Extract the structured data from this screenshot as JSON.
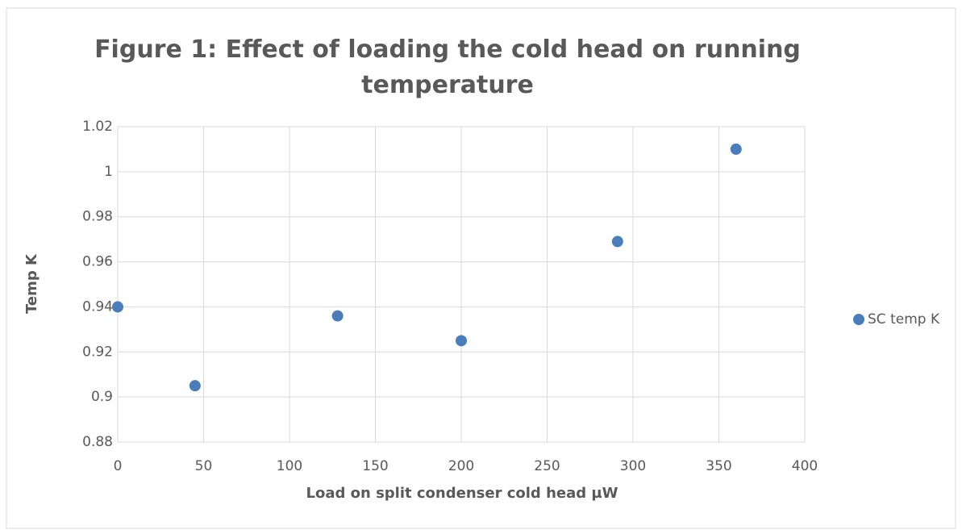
{
  "chart_data": {
    "type": "scatter",
    "title": "Figure 1: Effect of loading the cold head on running temperature",
    "xlabel": "Load on split condenser cold head µW",
    "ylabel": "Temp K",
    "series": [
      {
        "name": "SC temp K",
        "color": "#4a7ebb",
        "x": [
          0,
          45,
          128,
          200,
          291,
          360
        ],
        "values": [
          0.94,
          0.905,
          0.936,
          0.925,
          0.969,
          1.01
        ]
      }
    ],
    "xlim": [
      0,
      400
    ],
    "xticks": [
      0,
      50,
      100,
      150,
      200,
      250,
      300,
      350,
      400
    ],
    "ylim": [
      0.88,
      1.02
    ],
    "yticks": [
      0.88,
      0.9,
      0.92,
      0.94,
      0.96,
      0.98,
      1,
      1.02
    ],
    "grid": true,
    "legend": "right"
  }
}
